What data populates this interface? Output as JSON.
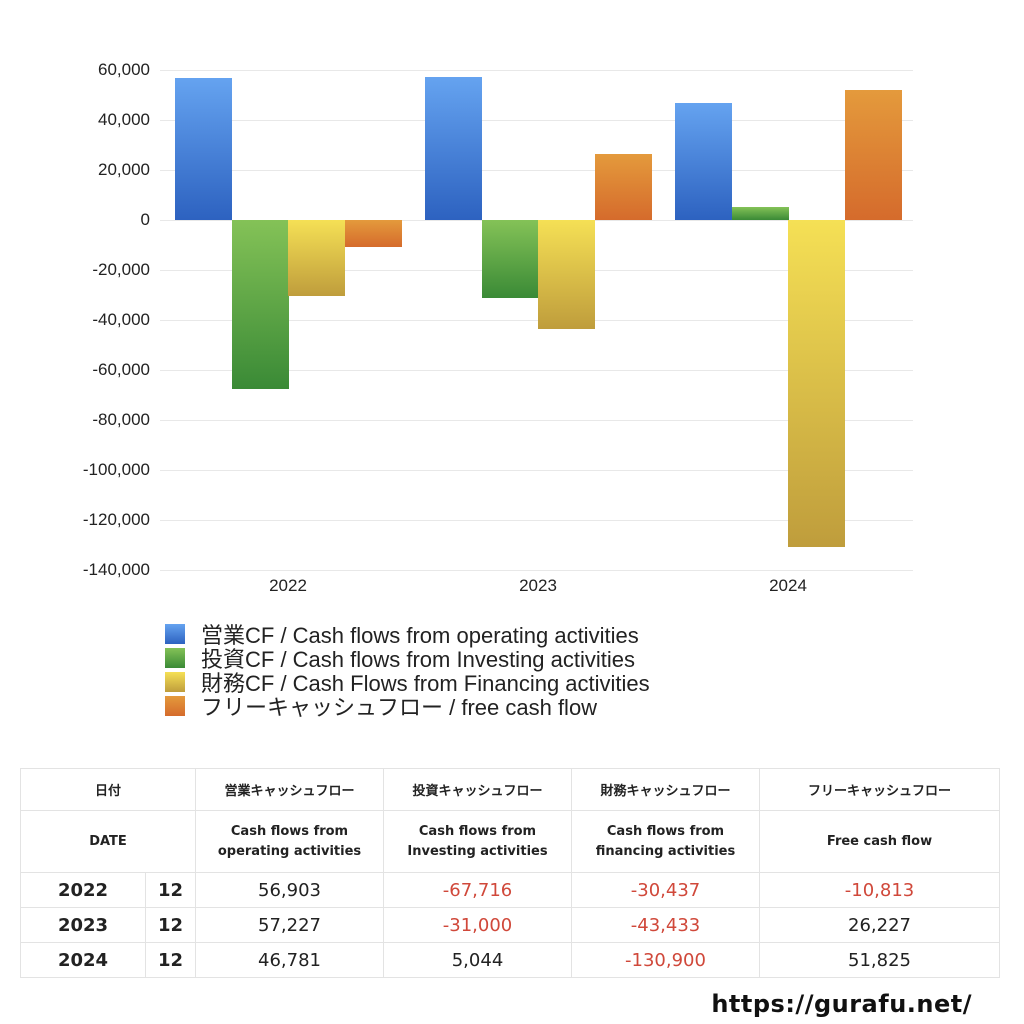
{
  "chart_data": {
    "type": "bar",
    "title": "",
    "xlabel": "",
    "ylabel": "",
    "categories": [
      "2022",
      "2023",
      "2024"
    ],
    "ylim": [
      -140000,
      60000
    ],
    "yticks": [
      "60,000",
      "40,000",
      "20,000",
      "0",
      "-20,000",
      "-40,000",
      "-60,000",
      "-80,000",
      "-100,000",
      "-120,000",
      "-140,000"
    ],
    "grid": true,
    "legend_position": "bottom",
    "series": [
      {
        "name": "営業CF / Cash flows from operating activities",
        "color": "#4a80dc",
        "values": [
          56903,
          57227,
          46781
        ]
      },
      {
        "name": "投資CF / Cash flows from Investing activities",
        "color": "#5aa445",
        "values": [
          -67716,
          -31000,
          5044
        ]
      },
      {
        "name": "財務CF / Cash Flows from Financing activities",
        "color": "#e2c64a",
        "values": [
          -30437,
          -43433,
          -130900
        ]
      },
      {
        "name": "フリーキャッシュフロー / free cash flow",
        "color": "#de8234",
        "values": [
          -10813,
          26227,
          51825
        ]
      }
    ]
  },
  "table": {
    "header_jp": [
      "日付",
      "営業キャッシュフロー",
      "投資キャッシュフロー",
      "財務キャッシュフロー",
      "フリーキャッシュフロー"
    ],
    "header_en": [
      "DATE",
      "Cash flows from operating activities",
      "Cash flows from Investing activities",
      "Cash flows from financing activities",
      "Free cash flow"
    ],
    "rows": [
      {
        "year": "2022",
        "month": "12",
        "operating": "56,903",
        "investing": "-67,716",
        "financing": "-30,437",
        "free": "-10,813"
      },
      {
        "year": "2023",
        "month": "12",
        "operating": "57,227",
        "investing": "-31,000",
        "financing": "-43,433",
        "free": "26,227"
      },
      {
        "year": "2024",
        "month": "12",
        "operating": "46,781",
        "investing": "5,044",
        "financing": "-130,900",
        "free": "51,825"
      }
    ]
  },
  "footer": {
    "url": "https://gurafu.net/"
  }
}
